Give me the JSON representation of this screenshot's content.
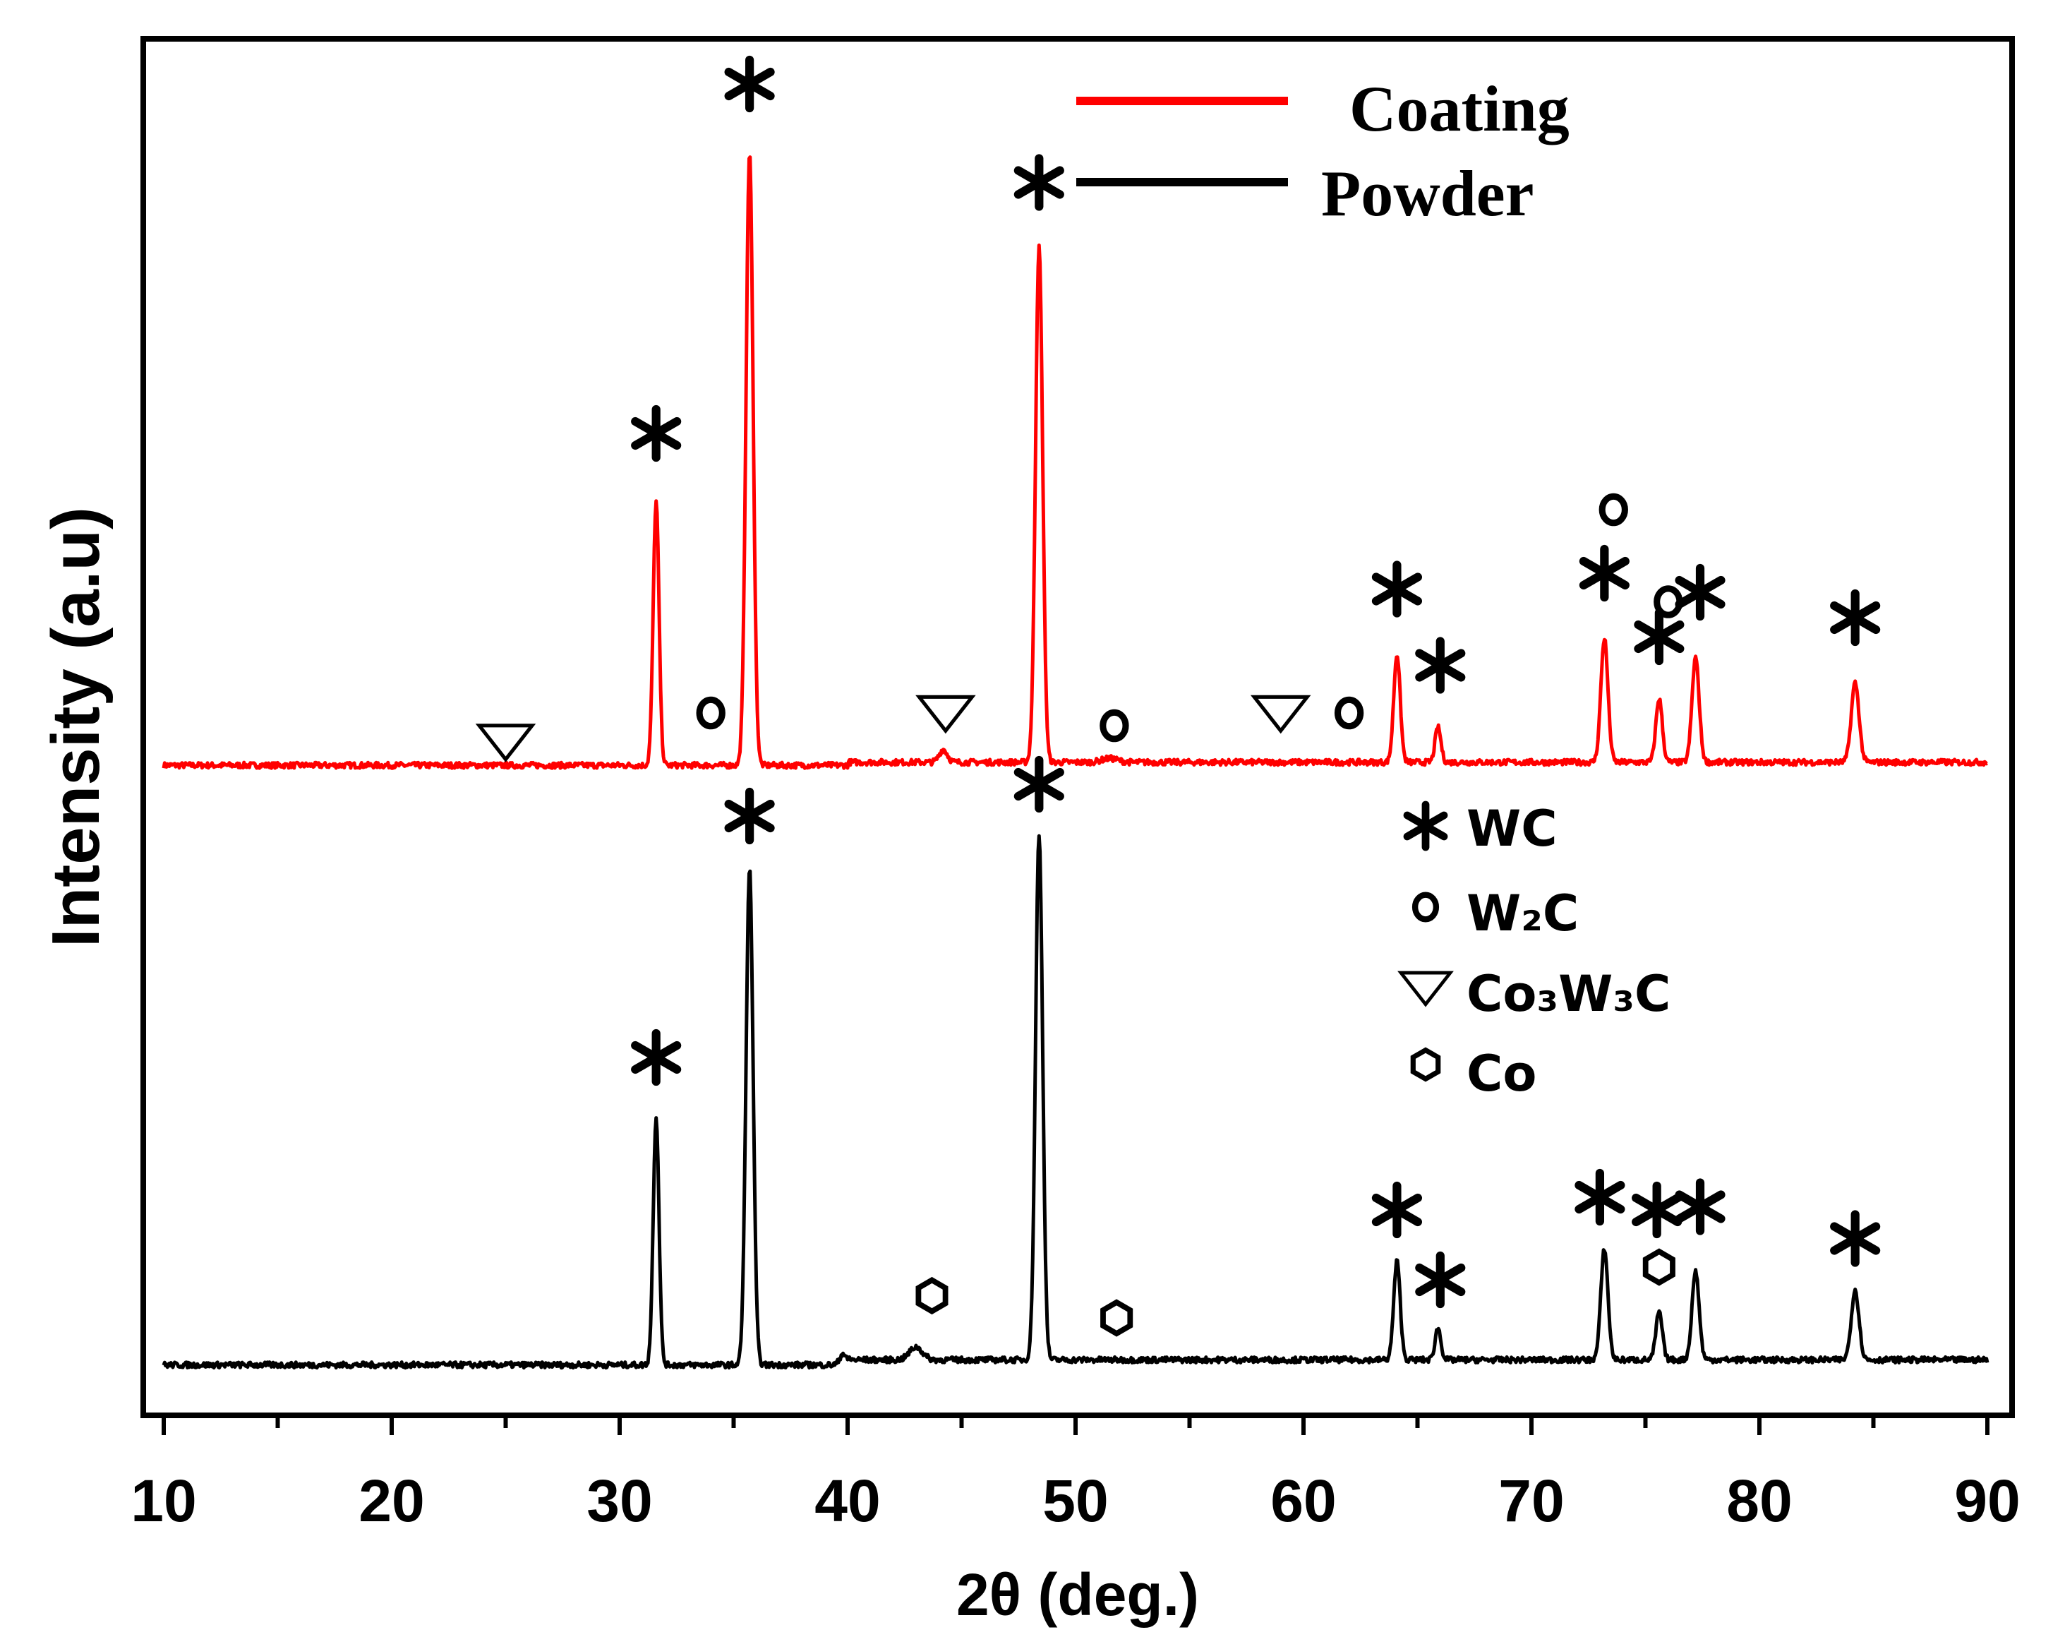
{
  "chart_data": {
    "type": "line",
    "xlabel": "2θ (deg.)",
    "ylabel": "Intensity (a.u)",
    "xlim": [
      10,
      90
    ],
    "x_ticks": [
      "10",
      "20",
      "30",
      "40",
      "50",
      "60",
      "70",
      "80",
      "90"
    ],
    "y_ticks": [],
    "grid": false,
    "legend_position": "top-right",
    "series": [
      {
        "name": "Coating",
        "color": "#ff0000",
        "baseline": 0.06,
        "peaks": [
          {
            "x": 31.6,
            "height": 0.415,
            "width": 0.18
          },
          {
            "x": 35.7,
            "height": 0.965,
            "width": 0.22
          },
          {
            "x": 44.2,
            "height": 0.02,
            "width": 0.25
          },
          {
            "x": 48.4,
            "height": 0.81,
            "width": 0.22
          },
          {
            "x": 51.5,
            "height": 0.006,
            "width": 0.5
          },
          {
            "x": 64.1,
            "height": 0.17,
            "width": 0.2
          },
          {
            "x": 65.9,
            "height": 0.055,
            "width": 0.18
          },
          {
            "x": 73.2,
            "height": 0.195,
            "width": 0.22
          },
          {
            "x": 75.6,
            "height": 0.1,
            "width": 0.2
          },
          {
            "x": 77.2,
            "height": 0.165,
            "width": 0.22
          },
          {
            "x": 84.2,
            "height": 0.125,
            "width": 0.24
          }
        ]
      },
      {
        "name": "Powder",
        "color": "#000000",
        "baseline": 0.0,
        "peaks": [
          {
            "x": 31.6,
            "height": 0.39,
            "width": 0.18
          },
          {
            "x": 35.7,
            "height": 0.78,
            "width": 0.22
          },
          {
            "x": 39.8,
            "height": 0.018,
            "width": 0.2
          },
          {
            "x": 43.0,
            "height": 0.02,
            "width": 0.4
          },
          {
            "x": 48.4,
            "height": 0.825,
            "width": 0.22
          },
          {
            "x": 64.1,
            "height": 0.155,
            "width": 0.2
          },
          {
            "x": 65.9,
            "height": 0.05,
            "width": 0.18
          },
          {
            "x": 73.2,
            "height": 0.175,
            "width": 0.22
          },
          {
            "x": 75.6,
            "height": 0.075,
            "width": 0.2
          },
          {
            "x": 77.2,
            "height": 0.14,
            "width": 0.22
          },
          {
            "x": 84.2,
            "height": 0.11,
            "width": 0.24
          }
        ]
      }
    ],
    "phase_legend": [
      {
        "marker": "asterisk",
        "label": "WC"
      },
      {
        "marker": "circle-o",
        "label": "W₂C"
      },
      {
        "marker": "triangle-down",
        "label": "Co₃W₃C"
      },
      {
        "marker": "hexagon",
        "label": "Co"
      }
    ],
    "markers": [
      {
        "symbol": "asterisk",
        "x": 31.6,
        "series": "Coating",
        "y": 0.52
      },
      {
        "symbol": "asterisk",
        "x": 35.7,
        "series": "Coating",
        "y": 1.07
      },
      {
        "symbol": "asterisk",
        "x": 48.4,
        "series": "Coating",
        "y": 0.915
      },
      {
        "symbol": "asterisk",
        "x": 64.1,
        "series": "Coating",
        "y": 0.275
      },
      {
        "symbol": "asterisk",
        "x": 66.0,
        "series": "Coating",
        "y": 0.155
      },
      {
        "symbol": "asterisk",
        "x": 73.2,
        "series": "Coating",
        "y": 0.3
      },
      {
        "symbol": "asterisk",
        "x": 75.6,
        "series": "Coating",
        "y": 0.2
      },
      {
        "symbol": "asterisk",
        "x": 77.4,
        "series": "Coating",
        "y": 0.27
      },
      {
        "symbol": "asterisk",
        "x": 84.2,
        "series": "Coating",
        "y": 0.23
      },
      {
        "symbol": "circle-o",
        "x": 34.0,
        "series": "Coating",
        "y": 0.08
      },
      {
        "symbol": "circle-o",
        "x": 51.7,
        "series": "Coating",
        "y": 0.06
      },
      {
        "symbol": "circle-o",
        "x": 62.0,
        "series": "Coating",
        "y": 0.08
      },
      {
        "symbol": "circle-o",
        "x": 73.6,
        "series": "Coating",
        "y": 0.4
      },
      {
        "symbol": "circle-o",
        "x": 76.0,
        "series": "Coating",
        "y": 0.255
      },
      {
        "symbol": "triangle-down",
        "x": 25.0,
        "series": "Coating",
        "y": 0.04
      },
      {
        "symbol": "triangle-down",
        "x": 44.3,
        "series": "Coating",
        "y": 0.085
      },
      {
        "symbol": "triangle-down",
        "x": 59.0,
        "series": "Coating",
        "y": 0.085
      },
      {
        "symbol": "asterisk",
        "x": 31.6,
        "series": "Powder",
        "y": 0.48
      },
      {
        "symbol": "asterisk",
        "x": 35.7,
        "series": "Powder",
        "y": 0.86
      },
      {
        "symbol": "asterisk",
        "x": 48.4,
        "series": "Powder",
        "y": 0.91
      },
      {
        "symbol": "asterisk",
        "x": 64.1,
        "series": "Powder",
        "y": 0.24
      },
      {
        "symbol": "asterisk",
        "x": 66.0,
        "series": "Powder",
        "y": 0.13
      },
      {
        "symbol": "asterisk",
        "x": 73.0,
        "series": "Powder",
        "y": 0.26
      },
      {
        "symbol": "asterisk",
        "x": 75.5,
        "series": "Powder",
        "y": 0.24
      },
      {
        "symbol": "asterisk",
        "x": 77.4,
        "series": "Powder",
        "y": 0.245
      },
      {
        "symbol": "asterisk",
        "x": 84.2,
        "series": "Powder",
        "y": 0.195
      },
      {
        "symbol": "hexagon",
        "x": 43.7,
        "series": "Powder",
        "y": 0.105
      },
      {
        "symbol": "hexagon",
        "x": 51.8,
        "series": "Powder",
        "y": 0.07
      },
      {
        "symbol": "hexagon",
        "x": 75.6,
        "series": "Powder",
        "y": 0.15
      }
    ]
  }
}
